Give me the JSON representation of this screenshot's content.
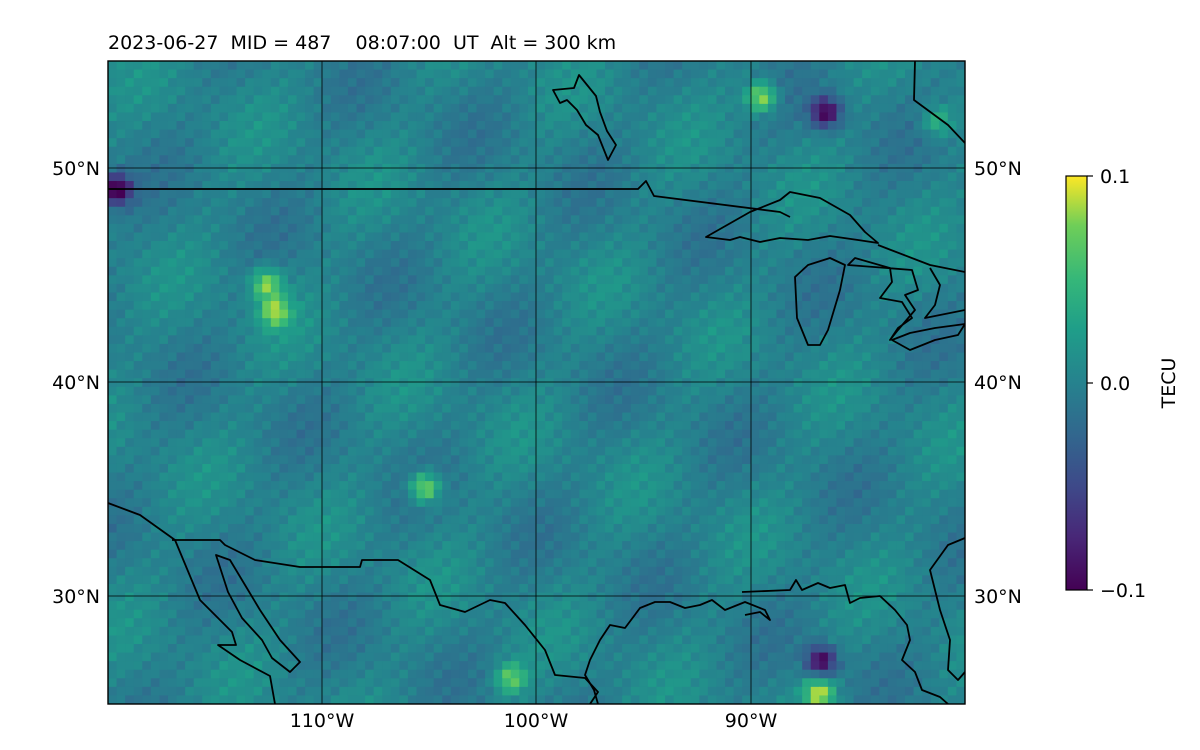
{
  "chart_data": {
    "type": "heatmap",
    "title": "2023-06-27  MID = 487    08:07:00  UT  Alt = 300 km",
    "map": {
      "lon_range": [
        -120,
        -80
      ],
      "lat_range": [
        25,
        55
      ],
      "gridlines": true,
      "x_ticks": [
        {
          "value": -110,
          "label": "110°W"
        },
        {
          "value": -100,
          "label": "100°W"
        },
        {
          "value": -90,
          "label": "90°W"
        }
      ],
      "y_ticks": [
        {
          "value": 50,
          "label": "50°N"
        },
        {
          "value": 40,
          "label": "40°N"
        },
        {
          "value": 30,
          "label": "30°N"
        }
      ],
      "coastlines": true
    },
    "colorbar": {
      "label": "TECU",
      "colormap": "viridis",
      "vmin": -0.1,
      "vmax": 0.1,
      "ticks": [
        {
          "value": 0.1,
          "label": "0.1"
        },
        {
          "value": 0.0,
          "label": "0.0"
        },
        {
          "value": -0.1,
          "label": "−0.1"
        }
      ]
    },
    "notable_values": [
      {
        "lon": -89.5,
        "lat": 53.3,
        "value": 0.1
      },
      {
        "lon": -86.5,
        "lat": 52.6,
        "value": -0.09
      },
      {
        "lon": -86.8,
        "lat": 25.5,
        "value": 0.1
      },
      {
        "lon": -86.7,
        "lat": 27.0,
        "value": -0.09
      },
      {
        "lon": -101.2,
        "lat": 26.2,
        "value": 0.08
      },
      {
        "lon": -105.2,
        "lat": 35.1,
        "value": 0.1
      },
      {
        "lon": -112.2,
        "lat": 43.3,
        "value": 0.09
      },
      {
        "lon": -112.6,
        "lat": 44.6,
        "value": 0.09
      },
      {
        "lon": -119.6,
        "lat": 49.0,
        "value": -0.1
      },
      {
        "lon": -81.3,
        "lat": 52.2,
        "value": 0.06
      }
    ]
  }
}
